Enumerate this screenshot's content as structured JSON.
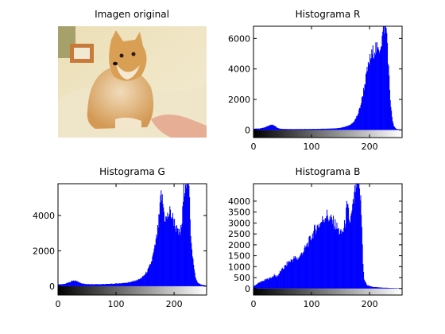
{
  "figure": {
    "photo_title": "Imagen original",
    "photo_description": "Shiba Inu dog lying on a cream sofa, a hand reaching toward its paw",
    "photo_colors": {
      "wall": "#e8dfb8",
      "sofa": "#efe8cf",
      "dog_fur": "#d9a560",
      "dog_cream": "#f4e7cf",
      "hand": "#e7b29c",
      "frame": "#c87a3a"
    },
    "bar_color": "#0000ff",
    "background": "#ffffff"
  },
  "chart_data": [
    {
      "type": "bar",
      "title": "Histograma R",
      "xlabel": "",
      "ylabel": "",
      "xlim": [
        0,
        256
      ],
      "ylim": [
        -500,
        6800
      ],
      "xticks": [
        0,
        100,
        200
      ],
      "yticks": [
        0,
        2000,
        4000,
        6000
      ],
      "grid": false,
      "colorbar": "grayscale",
      "series": [
        {
          "values_by_intensity": [
            [
              0,
              80
            ],
            [
              10,
              90
            ],
            [
              20,
              180
            ],
            [
              25,
              280
            ],
            [
              30,
              330
            ],
            [
              35,
              300
            ],
            [
              40,
              140
            ],
            [
              45,
              80
            ],
            [
              55,
              60
            ],
            [
              70,
              55
            ],
            [
              90,
              60
            ],
            [
              110,
              70
            ],
            [
              130,
              85
            ],
            [
              145,
              110
            ],
            [
              155,
              180
            ],
            [
              165,
              300
            ],
            [
              170,
              450
            ],
            [
              175,
              700
            ],
            [
              180,
              1100
            ],
            [
              185,
              1800
            ],
            [
              190,
              2800
            ],
            [
              195,
              3800
            ],
            [
              200,
              4600
            ],
            [
              205,
              5100
            ],
            [
              210,
              5400
            ],
            [
              214,
              5100
            ],
            [
              218,
              5600
            ],
            [
              221,
              6000
            ],
            [
              223,
              6800
            ],
            [
              226,
              6800
            ],
            [
              229,
              6400
            ],
            [
              232,
              4000
            ],
            [
              235,
              2000
            ],
            [
              238,
              800
            ],
            [
              241,
              250
            ],
            [
              245,
              80
            ],
            [
              250,
              40
            ],
            [
              255,
              20
            ]
          ]
        }
      ]
    },
    {
      "type": "bar",
      "title": "Histograma G",
      "xlabel": "",
      "ylabel": "",
      "xlim": [
        0,
        256
      ],
      "ylim": [
        -500,
        5800
      ],
      "xticks": [
        0,
        100,
        200
      ],
      "yticks": [
        0,
        2000,
        4000
      ],
      "grid": false,
      "colorbar": "grayscale",
      "series": [
        {
          "values_by_intensity": [
            [
              0,
              100
            ],
            [
              10,
              120
            ],
            [
              20,
              230
            ],
            [
              25,
              320
            ],
            [
              30,
              300
            ],
            [
              35,
              240
            ],
            [
              40,
              150
            ],
            [
              50,
              110
            ],
            [
              70,
              110
            ],
            [
              90,
              130
            ],
            [
              110,
              170
            ],
            [
              120,
              210
            ],
            [
              130,
              280
            ],
            [
              140,
              400
            ],
            [
              145,
              520
            ],
            [
              150,
              700
            ],
            [
              155,
              950
            ],
            [
              160,
              1350
            ],
            [
              165,
              2000
            ],
            [
              170,
              2900
            ],
            [
              174,
              4000
            ],
            [
              177,
              5200
            ],
            [
              180,
              4700
            ],
            [
              183,
              3900
            ],
            [
              186,
              3800
            ],
            [
              189,
              4000
            ],
            [
              192,
              4200
            ],
            [
              195,
              4000
            ],
            [
              198,
              3800
            ],
            [
              202,
              3400
            ],
            [
              206,
              3000
            ],
            [
              210,
              3000
            ],
            [
              213,
              3600
            ],
            [
              216,
              5400
            ],
            [
              219,
              6000
            ],
            [
              223,
              6000
            ],
            [
              226,
              5000
            ],
            [
              228,
              3000
            ],
            [
              231,
              1800
            ],
            [
              234,
              900
            ],
            [
              237,
              400
            ],
            [
              240,
              200
            ],
            [
              245,
              100
            ],
            [
              250,
              60
            ],
            [
              255,
              30
            ]
          ]
        }
      ]
    },
    {
      "type": "bar",
      "title": "Histograma B",
      "xlabel": "",
      "ylabel": "",
      "xlim": [
        0,
        256
      ],
      "ylim": [
        -300,
        4800
      ],
      "xticks": [
        0,
        100,
        200
      ],
      "yticks": [
        0,
        500,
        1000,
        1500,
        2000,
        2500,
        3000,
        3500,
        4000
      ],
      "grid": false,
      "colorbar": "grayscale",
      "series": [
        {
          "values_by_intensity": [
            [
              0,
              100
            ],
            [
              5,
              200
            ],
            [
              10,
              280
            ],
            [
              15,
              330
            ],
            [
              20,
              400
            ],
            [
              25,
              450
            ],
            [
              30,
              500
            ],
            [
              35,
              600
            ],
            [
              40,
              550
            ],
            [
              45,
              750
            ],
            [
              50,
              900
            ],
            [
              55,
              1050
            ],
            [
              60,
              1200
            ],
            [
              65,
              1300
            ],
            [
              70,
              1400
            ],
            [
              75,
              1350
            ],
            [
              80,
              1500
            ],
            [
              85,
              1700
            ],
            [
              90,
              1900
            ],
            [
              95,
              2150
            ],
            [
              100,
              2400
            ],
            [
              105,
              2700
            ],
            [
              110,
              2850
            ],
            [
              115,
              3000
            ],
            [
              120,
              3200
            ],
            [
              125,
              3400
            ],
            [
              130,
              3200
            ],
            [
              135,
              3100
            ],
            [
              140,
              2950
            ],
            [
              145,
              2700
            ],
            [
              150,
              2500
            ],
            [
              155,
              2700
            ],
            [
              158,
              3200
            ],
            [
              160,
              3700
            ],
            [
              163,
              3500
            ],
            [
              165,
              3000
            ],
            [
              168,
              3300
            ],
            [
              171,
              3800
            ],
            [
              173,
              4200
            ],
            [
              175,
              4600
            ],
            [
              177,
              4800
            ],
            [
              180,
              4800
            ],
            [
              182,
              4400
            ],
            [
              184,
              4000
            ],
            [
              186,
              2800
            ],
            [
              188,
              1200
            ],
            [
              190,
              400
            ],
            [
              195,
              150
            ],
            [
              205,
              70
            ],
            [
              220,
              40
            ],
            [
              240,
              20
            ],
            [
              255,
              10
            ]
          ]
        }
      ]
    }
  ]
}
